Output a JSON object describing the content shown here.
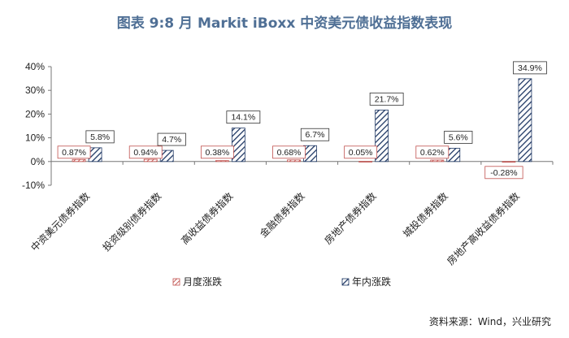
{
  "page": {
    "title": "图表 9:8 月 Markit iBoxx 中资美元债收益指数表现"
  },
  "source": "资料来源：Wind，兴业研究",
  "colors": {
    "monthly": "#c0504d",
    "yearly": "#1f3864",
    "title": "#4f6f95"
  },
  "chart_data": {
    "type": "bar",
    "categories": [
      "中资美元债券指数",
      "投资级别债券指数",
      "高收益债券指数",
      "金融债券指数",
      "房地产债券指数",
      "城投债券指数",
      "房地产高收益债券指数"
    ],
    "series": [
      {
        "name": "月度涨跌",
        "values": [
          0.87,
          0.94,
          0.38,
          0.68,
          0.05,
          0.62,
          -0.28
        ],
        "labels": [
          "0.87%",
          "0.94%",
          "0.38%",
          "0.68%",
          "0.05%",
          "0.62%",
          "-0.28%"
        ]
      },
      {
        "name": "年内涨跌",
        "values": [
          5.8,
          4.7,
          14.1,
          6.7,
          21.7,
          5.6,
          34.9
        ],
        "labels": [
          "5.8%",
          "4.7%",
          "14.1%",
          "6.7%",
          "21.7%",
          "5.6%",
          "34.9%"
        ]
      }
    ],
    "yticks": [
      "40%",
      "30%",
      "20%",
      "10%",
      "0%",
      "-10%"
    ],
    "ylim": [
      -10,
      40
    ],
    "grid": false,
    "legend": "bottom"
  }
}
